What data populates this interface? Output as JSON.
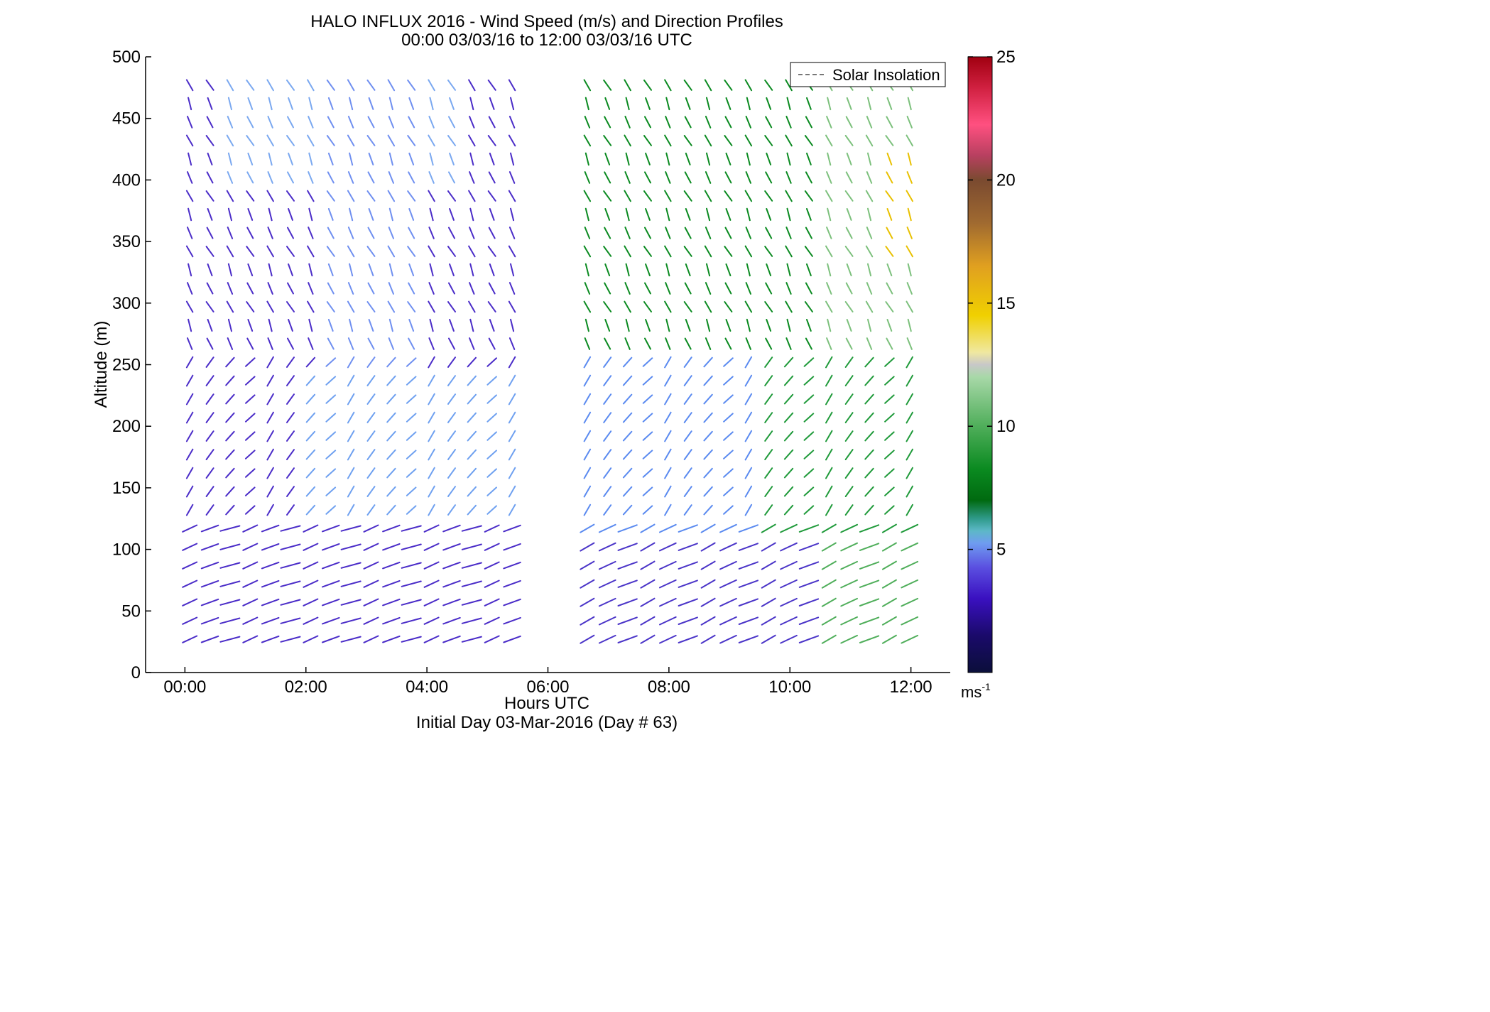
{
  "chart_data": {
    "type": "quiver",
    "title_line1": "HALO INFLUX 2016 - Wind Speed (m/s) and Direction Profiles",
    "title_line2": "00:00 03/03/16 to 12:00 03/03/16  UTC",
    "xlabel": "Hours UTC",
    "xlabel_sub": "Initial Day 03-Mar-2016 (Day # 63)",
    "ylabel": "Altitude (m)",
    "xlim": [
      -0.65,
      12.65
    ],
    "ylim": [
      0,
      500
    ],
    "x_ticks": [
      0,
      2,
      4,
      6,
      8,
      10,
      12
    ],
    "x_tick_labels": [
      "00:00",
      "02:00",
      "04:00",
      "06:00",
      "08:00",
      "10:00",
      "12:00"
    ],
    "y_ticks": [
      0,
      50,
      100,
      150,
      200,
      250,
      300,
      350,
      400,
      450,
      500
    ],
    "y_tick_labels": [
      "0",
      "50",
      "100",
      "150",
      "200",
      "250",
      "300",
      "350",
      "400",
      "450",
      "500"
    ],
    "legend": {
      "entry": "Solar Insolation",
      "position": "top-right"
    },
    "colorbar": {
      "range": [
        0,
        25
      ],
      "ticks": [
        5,
        10,
        15,
        20,
        25
      ],
      "tick_labels": [
        "5",
        "10",
        "15",
        "20",
        "25"
      ],
      "unit": "ms",
      "unit_sup": "-1"
    },
    "altitudes": [
      25,
      35,
      50,
      65,
      80,
      100,
      115,
      130,
      150,
      165,
      180,
      200,
      215,
      230,
      250,
      265,
      280,
      300,
      315,
      330,
      350,
      365,
      380,
      400,
      415,
      430,
      450,
      465,
      480,
      500
    ],
    "time_blocks": [
      {
        "start": 0.08,
        "end": 5.4
      },
      {
        "start": 6.65,
        "end": 11.85
      }
    ],
    "time_step_hours": 0.333,
    "altitude_step_m": 32,
    "description_of_profiles": "wind barbs colored by speed"
  }
}
